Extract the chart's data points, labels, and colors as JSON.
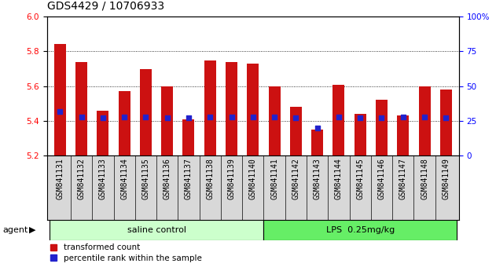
{
  "title": "GDS4429 / 10706933",
  "samples": [
    "GSM841131",
    "GSM841132",
    "GSM841133",
    "GSM841134",
    "GSM841135",
    "GSM841136",
    "GSM841137",
    "GSM841138",
    "GSM841139",
    "GSM841140",
    "GSM841141",
    "GSM841142",
    "GSM841143",
    "GSM841144",
    "GSM841145",
    "GSM841146",
    "GSM841147",
    "GSM841148",
    "GSM841149"
  ],
  "transformed_count": [
    5.845,
    5.74,
    5.46,
    5.57,
    5.7,
    5.6,
    5.41,
    5.75,
    5.74,
    5.73,
    5.6,
    5.48,
    5.35,
    5.61,
    5.44,
    5.52,
    5.43,
    5.6,
    5.58
  ],
  "percentile_rank": [
    32,
    28,
    27,
    28,
    28,
    27,
    27,
    28,
    28,
    28,
    28,
    27,
    20,
    28,
    27,
    27,
    28,
    28,
    27
  ],
  "ylim_left": [
    5.2,
    6.0
  ],
  "ylim_right": [
    0,
    100
  ],
  "yticks_left": [
    5.2,
    5.4,
    5.6,
    5.8,
    6.0
  ],
  "yticks_right": [
    0,
    25,
    50,
    75,
    100
  ],
  "bar_color": "#cc1111",
  "dot_color": "#2222cc",
  "group1_label": "saline control",
  "group2_label": "LPS  0.25mg/kg",
  "group1_count": 10,
  "group1_color": "#ccffcc",
  "group2_color": "#66ee66",
  "agent_label": "agent",
  "legend_bar": "transformed count",
  "legend_dot": "percentile rank within the sample",
  "xtick_bg_color": "#d8d8d8",
  "title_fontsize": 10,
  "tick_fontsize": 7.5,
  "label_fontsize": 7,
  "bar_width": 0.55
}
